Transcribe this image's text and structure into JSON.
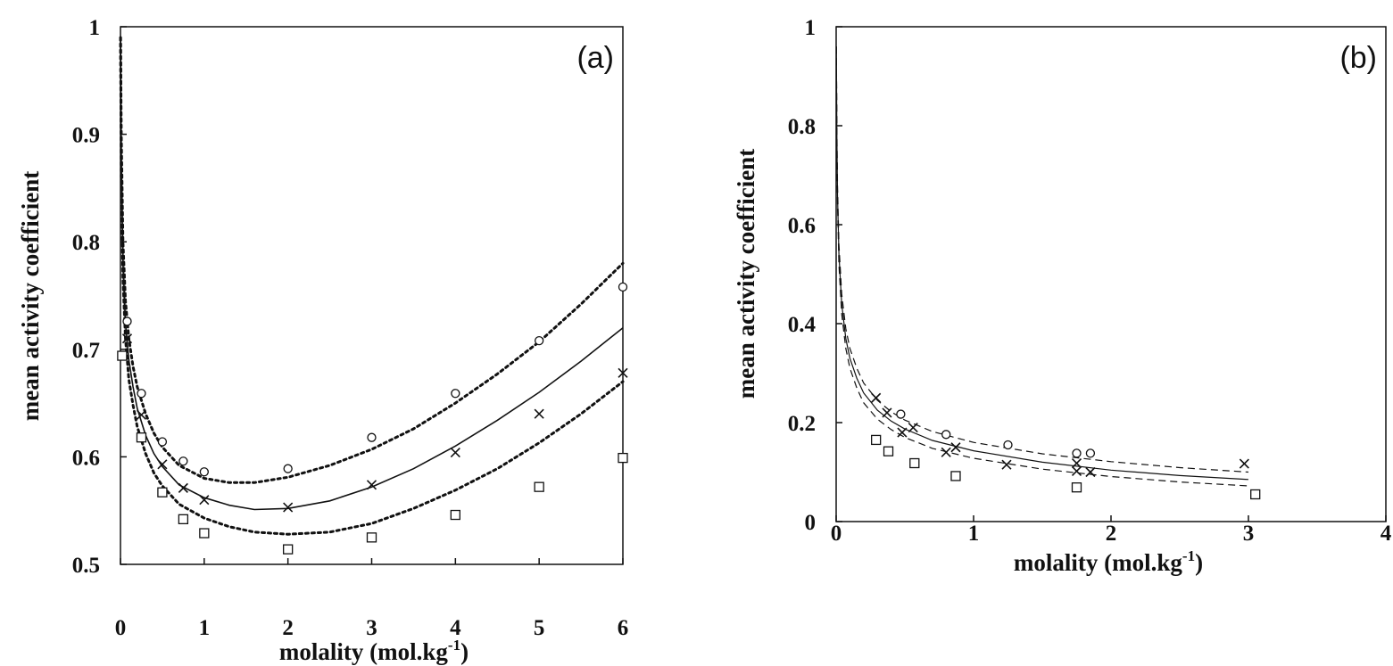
{
  "chart_data": [
    {
      "type": "scatter",
      "panel_label": "(a)",
      "xlabel": "molality (mol.kg",
      "xlabel_sup": "-1",
      "xlabel_tail": ")",
      "ylabel": "mean activity coefficient",
      "xlim": [
        0,
        6
      ],
      "ylim": [
        0.5,
        1
      ],
      "xticks": [
        0,
        1,
        2,
        3,
        4,
        5,
        6
      ],
      "yticks": [
        0.5,
        0.6,
        0.7,
        0.8,
        0.9,
        1
      ],
      "ytick_labels": [
        "0.5",
        "0.6",
        "0.7",
        "0.8",
        "0.9",
        "1"
      ],
      "grid": false,
      "legend": "none",
      "points": [
        {
          "marker": "circle",
          "x": [
            0.08,
            0.25,
            0.5,
            0.75,
            1,
            2,
            3,
            4,
            5,
            6
          ],
          "y": [
            0.726,
            0.659,
            0.614,
            0.596,
            0.586,
            0.589,
            0.618,
            0.659,
            0.708,
            0.758
          ]
        },
        {
          "marker": "cross",
          "x": [
            0.08,
            0.25,
            0.5,
            0.75,
            1,
            2,
            3,
            4,
            5,
            6
          ],
          "y": [
            0.71,
            0.639,
            0.593,
            0.571,
            0.56,
            0.553,
            0.574,
            0.604,
            0.64,
            0.678
          ]
        },
        {
          "marker": "square",
          "x": [
            0.02,
            0.25,
            0.5,
            0.75,
            1,
            2,
            3,
            4,
            5,
            6
          ],
          "y": [
            0.694,
            0.618,
            0.567,
            0.542,
            0.529,
            0.514,
            0.525,
            0.546,
            0.572,
            0.599
          ]
        }
      ],
      "curves": [
        {
          "style": "dotted",
          "x": [
            0.001,
            0.01,
            0.03,
            0.06,
            0.1,
            0.15,
            0.2,
            0.3,
            0.4,
            0.5,
            0.7,
            1,
            1.3,
            1.6,
            2,
            2.5,
            3,
            3.5,
            4,
            4.5,
            5,
            5.5,
            6
          ],
          "y": [
            0.99,
            0.9,
            0.8,
            0.745,
            0.71,
            0.684,
            0.665,
            0.64,
            0.622,
            0.609,
            0.592,
            0.58,
            0.576,
            0.576,
            0.581,
            0.592,
            0.607,
            0.626,
            0.65,
            0.677,
            0.707,
            0.742,
            0.78
          ]
        },
        {
          "style": "solid",
          "x": [
            0.001,
            0.01,
            0.03,
            0.06,
            0.1,
            0.15,
            0.2,
            0.3,
            0.4,
            0.5,
            0.7,
            1,
            1.3,
            1.6,
            2,
            2.5,
            3,
            3.5,
            4,
            4.5,
            5,
            5.5,
            6
          ],
          "y": [
            0.99,
            0.88,
            0.78,
            0.725,
            0.69,
            0.665,
            0.645,
            0.62,
            0.603,
            0.591,
            0.574,
            0.562,
            0.555,
            0.551,
            0.552,
            0.559,
            0.572,
            0.589,
            0.61,
            0.634,
            0.66,
            0.689,
            0.72
          ]
        },
        {
          "style": "dotted",
          "x": [
            0.001,
            0.01,
            0.03,
            0.06,
            0.1,
            0.15,
            0.2,
            0.3,
            0.4,
            0.5,
            0.7,
            1,
            1.3,
            1.6,
            2,
            2.5,
            3,
            3.5,
            4,
            4.5,
            5,
            5.5,
            6
          ],
          "y": [
            0.99,
            0.86,
            0.765,
            0.71,
            0.672,
            0.648,
            0.628,
            0.603,
            0.585,
            0.573,
            0.556,
            0.543,
            0.535,
            0.53,
            0.528,
            0.53,
            0.538,
            0.552,
            0.569,
            0.589,
            0.613,
            0.64,
            0.67
          ]
        }
      ]
    },
    {
      "type": "scatter",
      "panel_label": "(b)",
      "xlabel": "molality (mol.kg",
      "xlabel_sup": "-1",
      "xlabel_tail": ")",
      "ylabel": "mean activity coefficient",
      "xlim": [
        0,
        4
      ],
      "ylim": [
        0,
        1
      ],
      "xticks": [
        0,
        1,
        2,
        3,
        4
      ],
      "yticks": [
        0,
        0.2,
        0.4,
        0.6,
        0.8,
        1
      ],
      "ytick_labels": [
        "0",
        "0.2",
        "0.4",
        "0.6",
        "0.8",
        "1"
      ],
      "grid": false,
      "legend": "none",
      "points": [
        {
          "marker": "circle",
          "x": [
            0.47,
            0.8,
            1.25,
            1.75,
            1.85
          ],
          "y": [
            0.217,
            0.176,
            0.155,
            0.138,
            0.138
          ]
        },
        {
          "marker": "cross",
          "x": [
            0.29,
            0.37,
            0.48,
            0.56,
            0.8,
            0.87,
            1.24,
            1.75,
            1.75,
            1.85,
            2.97
          ],
          "y": [
            0.25,
            0.22,
            0.18,
            0.19,
            0.14,
            0.15,
            0.115,
            0.118,
            0.102,
            0.1,
            0.117
          ]
        },
        {
          "marker": "square",
          "x": [
            0.29,
            0.38,
            0.57,
            0.87,
            1.75,
            3.05
          ],
          "y": [
            0.165,
            0.142,
            0.118,
            0.092,
            0.069,
            0.055
          ]
        }
      ],
      "curves": [
        {
          "style": "dashed",
          "x": [
            0.001,
            0.005,
            0.01,
            0.02,
            0.04,
            0.07,
            0.1,
            0.15,
            0.2,
            0.3,
            0.4,
            0.5,
            0.7,
            1,
            1.5,
            2,
            2.5,
            3
          ],
          "y": [
            0.96,
            0.8,
            0.68,
            0.56,
            0.46,
            0.39,
            0.35,
            0.31,
            0.28,
            0.245,
            0.222,
            0.205,
            0.182,
            0.16,
            0.137,
            0.121,
            0.109,
            0.1
          ]
        },
        {
          "style": "solid",
          "x": [
            0.001,
            0.005,
            0.01,
            0.02,
            0.04,
            0.07,
            0.1,
            0.15,
            0.2,
            0.3,
            0.4,
            0.5,
            0.7,
            1,
            1.5,
            2,
            2.5,
            3
          ],
          "y": [
            0.96,
            0.78,
            0.66,
            0.54,
            0.44,
            0.37,
            0.33,
            0.29,
            0.26,
            0.225,
            0.203,
            0.187,
            0.164,
            0.143,
            0.12,
            0.104,
            0.093,
            0.085
          ]
        },
        {
          "style": "dashed",
          "x": [
            0.001,
            0.005,
            0.01,
            0.02,
            0.04,
            0.07,
            0.1,
            0.15,
            0.2,
            0.3,
            0.4,
            0.5,
            0.7,
            1,
            1.5,
            2,
            2.5,
            3
          ],
          "y": [
            0.96,
            0.76,
            0.64,
            0.52,
            0.42,
            0.35,
            0.31,
            0.27,
            0.24,
            0.207,
            0.186,
            0.17,
            0.148,
            0.128,
            0.106,
            0.091,
            0.08,
            0.072
          ]
        }
      ]
    }
  ]
}
